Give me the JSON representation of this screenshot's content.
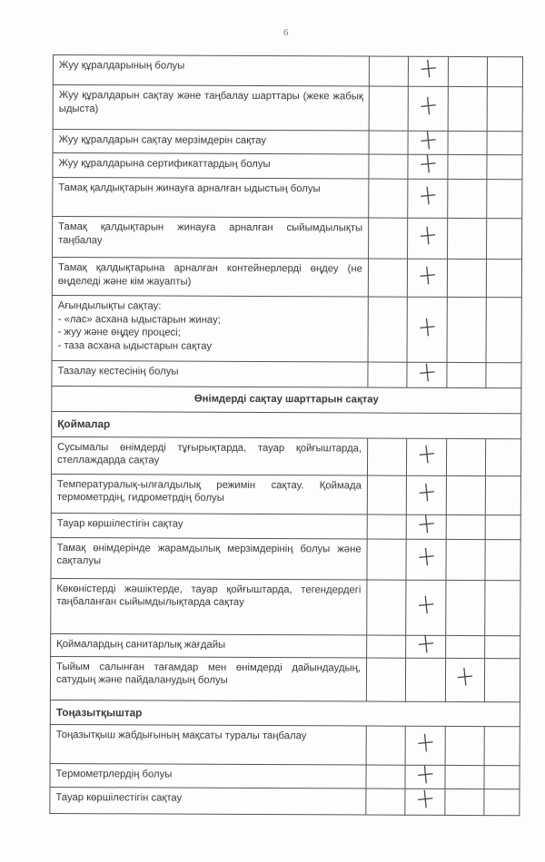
{
  "page_number": "6",
  "rows": [
    {
      "type": "item",
      "text": "Жуу құралдарының болуы",
      "mark": "+",
      "col": 1,
      "h": 33
    },
    {
      "type": "item",
      "text": "Жуу құралдарын сақтау және таңбалау шарттары (жеке жабық ыдыста)",
      "mark": "+",
      "col": 1,
      "h": 49
    },
    {
      "type": "item",
      "text": "Жуу құралдарын сақтау мерзімдерін сақтау",
      "mark": "+",
      "col": 1,
      "h": 26
    },
    {
      "type": "item",
      "text": "Жуу құралдарына сертификаттардың болуы",
      "mark": "+",
      "col": 1,
      "h": 27
    },
    {
      "type": "item",
      "text": "Тамақ қалдықтарын жинауға арналған ыдыстың болуы",
      "mark": "+",
      "col": 1,
      "h": 43
    },
    {
      "type": "item",
      "text": "Тамақ қалдықтарын жинауға арналған сыйымдылықты таңбалау",
      "mark": "+",
      "col": 1,
      "h": 45
    },
    {
      "type": "item",
      "text": "Тамақ қалдықтарына арналған контейнерлерді өңдеу (не өңделеді және кім жауапты)",
      "mark": "+",
      "col": 1,
      "h": 42
    },
    {
      "type": "item",
      "text": "Ағындылықты сақтау:\n- «лас» асхана ыдыстарын жинау;\n- жуу және өңдеу процесі;\n- таза асхана ыдыстарын сақтау",
      "mark": "+",
      "col": 1,
      "h": 72
    },
    {
      "type": "item",
      "text": "Тазалау кестесінің болуы",
      "mark": "+",
      "col": 1,
      "h": 28
    },
    {
      "type": "section",
      "text": "Өнімдерді сақтау шарттарын сақтау",
      "h": 27
    },
    {
      "type": "sub",
      "text": "Қоймалар",
      "h": 28
    },
    {
      "type": "item",
      "text": "Сусымалы өнімдерді тұғырықтарда, тауар қойғыштарда, стеллаждарда сақтау",
      "mark": "+",
      "col": 1,
      "h": 41
    },
    {
      "type": "item",
      "text": "Температуралық-ылғалдылық режимін сақтау. Қоймада термометрдің, гидрометрдің болуы",
      "mark": "+",
      "col": 1,
      "h": 43
    },
    {
      "type": "item",
      "text": "Тауар көршілестігін сақтау",
      "mark": "+",
      "col": 1,
      "h": 27
    },
    {
      "type": "item",
      "text": "Тамақ өнімдерінде жарамдылық мерзімдерінің болуы және сақталуы",
      "mark": "+",
      "col": 1,
      "h": 45
    },
    {
      "type": "item",
      "text": "Көкөністерді жәшіктерде, тауар қойғыштарда, тегендердегі таңбаланған сыйымдылықтарда сақтау",
      "mark": "+",
      "col": 1,
      "h": 61
    },
    {
      "type": "item",
      "text": "Қоймалардың санитарлық жағдайы",
      "mark": "+",
      "col": 1,
      "h": 25
    },
    {
      "type": "item",
      "text": "Тыйым салынған тағамдар мен өнімдерді дайындаудың, сатудың және пайдаланудың болуы",
      "mark": "+",
      "col": 2,
      "h": 48
    },
    {
      "type": "sub",
      "text": "Тоңазытқыштар",
      "h": 25
    },
    {
      "type": "item",
      "text": "Тоңазытқыш жабдығының мақсаты туралы таңбалау",
      "mark": "+",
      "col": 1,
      "h": 43
    },
    {
      "type": "item",
      "text": "Термометрлердің болуы",
      "mark": "+",
      "col": 1,
      "h": 26
    },
    {
      "type": "item",
      "text": "Тауар көршілестігін сақтау",
      "mark": "+",
      "col": 1,
      "h": 29
    }
  ]
}
